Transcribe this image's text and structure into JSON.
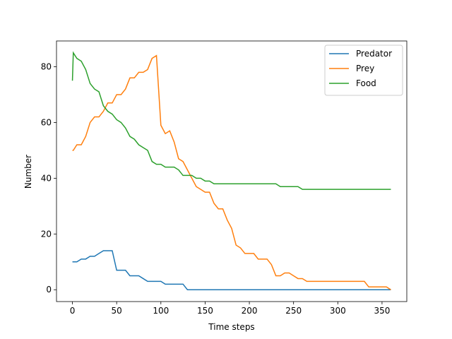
{
  "chart_data": {
    "type": "line",
    "xlabel": "Time steps",
    "ylabel": "Number",
    "x": [
      0,
      1,
      5,
      10,
      15,
      20,
      25,
      30,
      35,
      40,
      45,
      50,
      55,
      60,
      65,
      70,
      75,
      80,
      85,
      90,
      95,
      100,
      105,
      110,
      115,
      120,
      125,
      130,
      135,
      140,
      145,
      150,
      155,
      160,
      165,
      170,
      175,
      180,
      185,
      190,
      195,
      200,
      205,
      210,
      215,
      220,
      225,
      230,
      235,
      240,
      245,
      250,
      255,
      260,
      265,
      270,
      275,
      280,
      285,
      290,
      295,
      300,
      305,
      310,
      315,
      320,
      325,
      330,
      335,
      340,
      345,
      350,
      355,
      360
    ],
    "series": [
      {
        "name": "Predator",
        "color": "#1f77b4",
        "values": [
          10,
          10,
          10,
          11,
          11,
          12,
          12,
          13,
          14,
          14,
          14,
          7,
          7,
          7,
          5,
          5,
          5,
          4,
          3,
          3,
          3,
          3,
          2,
          2,
          2,
          2,
          2,
          0,
          0,
          0,
          0,
          0,
          0,
          0,
          0,
          0,
          0,
          0,
          0,
          0,
          0,
          0,
          0,
          0,
          0,
          0,
          0,
          0,
          0,
          0,
          0,
          0,
          0,
          0,
          0,
          0,
          0,
          0,
          0,
          0,
          0,
          0,
          0,
          0,
          0,
          0,
          0,
          0,
          0,
          0,
          0,
          0,
          0,
          0
        ]
      },
      {
        "name": "Prey",
        "color": "#ff7f0e",
        "values": [
          50,
          50,
          52,
          52,
          55,
          60,
          62,
          62,
          64,
          67,
          67,
          70,
          70,
          72,
          76,
          76,
          78,
          78,
          79,
          83,
          84,
          59,
          56,
          57,
          53,
          47,
          46,
          43,
          40,
          37,
          36,
          35,
          35,
          31,
          29,
          29,
          25,
          22,
          16,
          15,
          13,
          13,
          13,
          11,
          11,
          11,
          9,
          5,
          5,
          6,
          6,
          5,
          4,
          4,
          3,
          3,
          3,
          3,
          3,
          3,
          3,
          3,
          3,
          3,
          3,
          3,
          3,
          3,
          1,
          1,
          1,
          1,
          1,
          0
        ]
      },
      {
        "name": "Food",
        "color": "#2ca02c",
        "values": [
          75,
          85,
          83,
          82,
          79,
          74,
          72,
          71,
          66,
          64,
          63,
          61,
          60,
          58,
          55,
          54,
          52,
          51,
          50,
          46,
          45,
          45,
          44,
          44,
          44,
          43,
          41,
          41,
          41,
          40,
          40,
          39,
          39,
          38,
          38,
          38,
          38,
          38,
          38,
          38,
          38,
          38,
          38,
          38,
          38,
          38,
          38,
          38,
          37,
          37,
          37,
          37,
          37,
          36,
          36,
          36,
          36,
          36,
          36,
          36,
          36,
          36,
          36,
          36,
          36,
          36,
          36,
          36,
          36,
          36,
          36,
          36,
          36,
          36
        ]
      }
    ],
    "xlim": [
      -18,
      378
    ],
    "ylim": [
      -4.25,
      89.25
    ],
    "xticks": [
      0,
      50,
      100,
      150,
      200,
      250,
      300,
      350
    ],
    "yticks": [
      0,
      20,
      40,
      60,
      80
    ],
    "legend": "upper right"
  }
}
